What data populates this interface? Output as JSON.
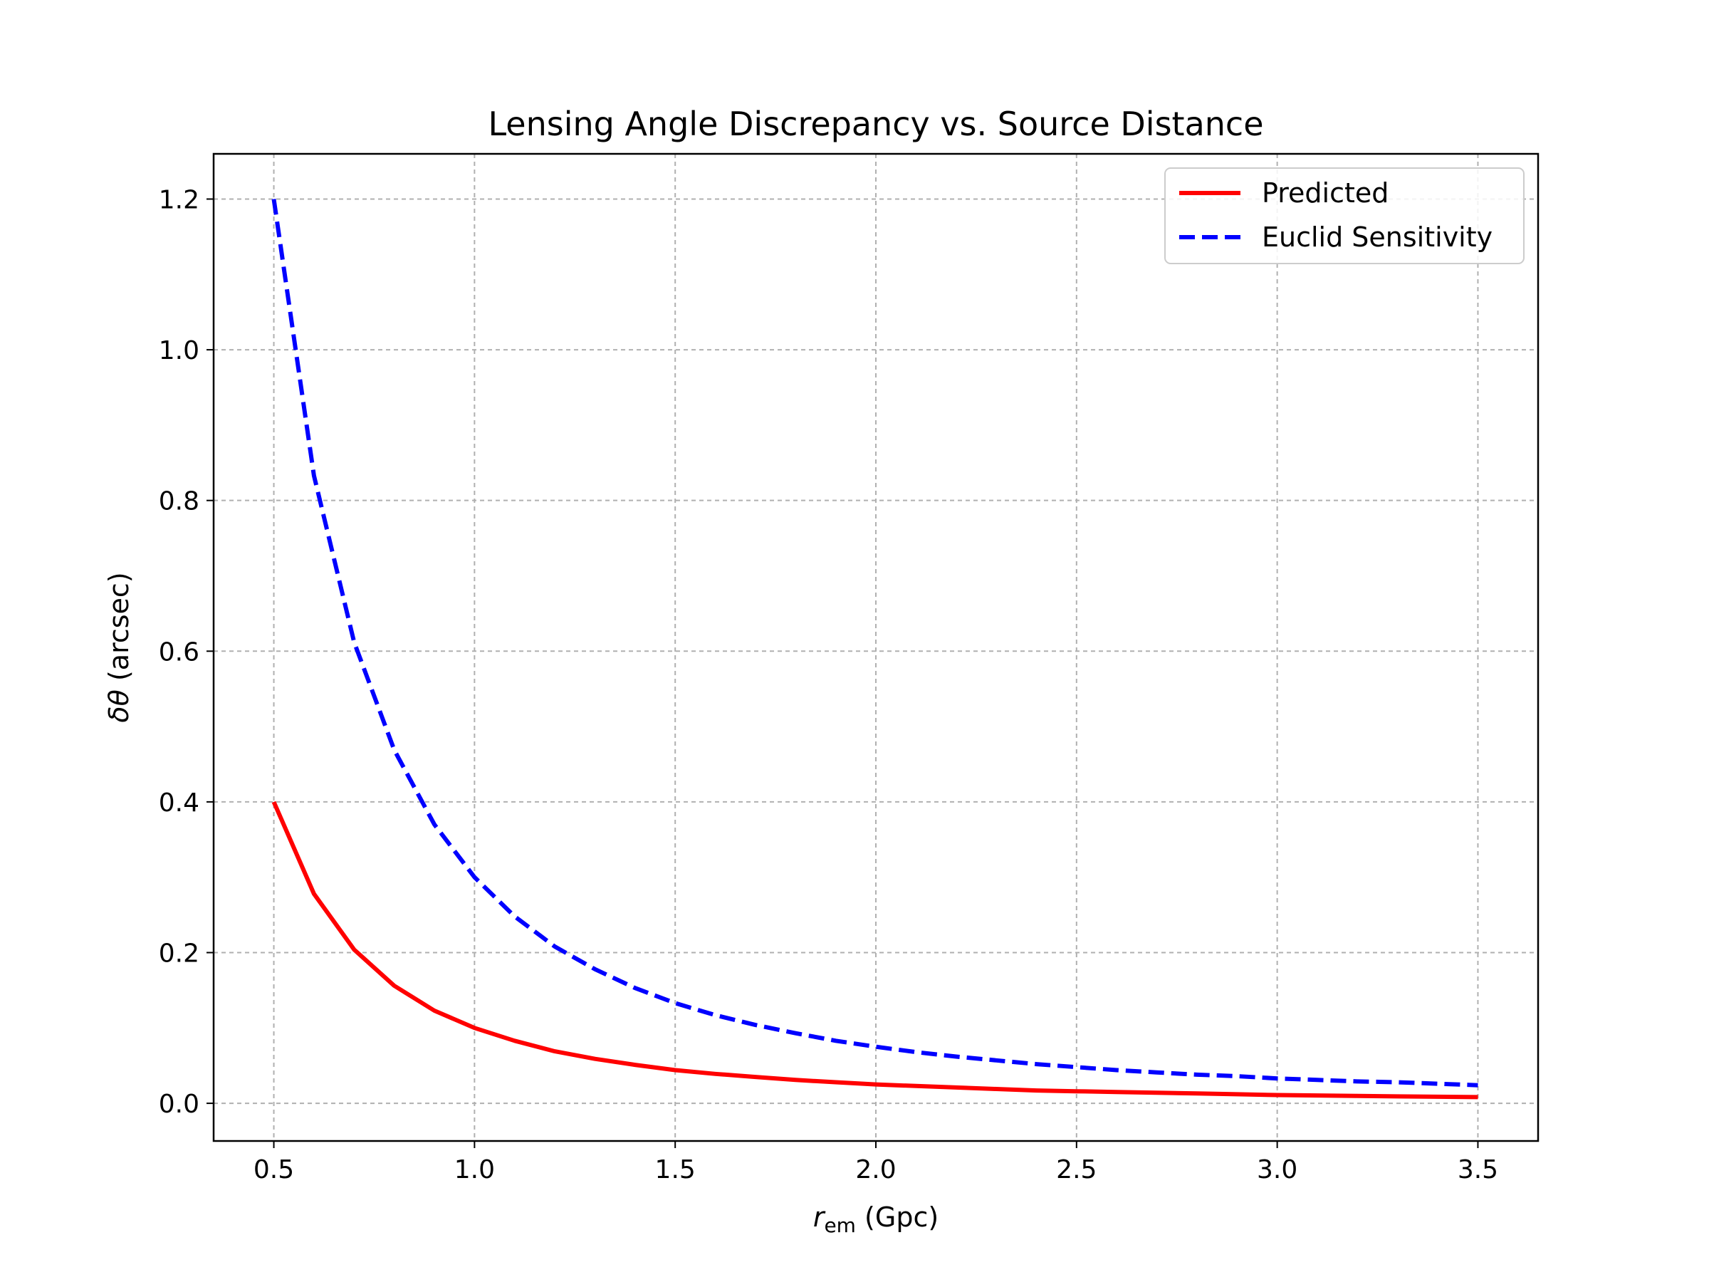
{
  "chart_data": {
    "type": "line",
    "title": "Lensing Angle Discrepancy vs. Source Distance",
    "xlabel": {
      "symbol": "r",
      "subscript": "em",
      "rest": " (Gpc)"
    },
    "ylabel": {
      "symbol": "δθ",
      "rest": " (arcsec)"
    },
    "xlim": [
      0.35,
      3.65
    ],
    "ylim": [
      -0.05,
      1.26
    ],
    "xticks": [
      0.5,
      1.0,
      1.5,
      2.0,
      2.5,
      3.0,
      3.5
    ],
    "xtick_labels": [
      "0.5",
      "1.0",
      "1.5",
      "2.0",
      "2.5",
      "3.0",
      "3.5"
    ],
    "yticks": [
      0.0,
      0.2,
      0.4,
      0.6,
      0.8,
      1.0,
      1.2
    ],
    "ytick_labels": [
      "0.0",
      "0.2",
      "0.4",
      "0.6",
      "0.8",
      "1.0",
      "1.2"
    ],
    "grid": true,
    "legend_position": "top-right",
    "x": [
      0.5,
      0.6,
      0.7,
      0.8,
      0.9,
      1.0,
      1.1,
      1.2,
      1.3,
      1.4,
      1.5,
      1.6,
      1.7,
      1.8,
      1.9,
      2.0,
      2.1,
      2.2,
      2.3,
      2.4,
      2.5,
      2.6,
      2.7,
      2.8,
      2.9,
      3.0,
      3.1,
      3.2,
      3.3,
      3.4,
      3.5
    ],
    "series": [
      {
        "name": "Predicted",
        "color": "#ff0000",
        "style": "solid",
        "values": [
          0.4,
          0.278,
          0.204,
          0.156,
          0.123,
          0.1,
          0.083,
          0.069,
          0.059,
          0.051,
          0.044,
          0.039,
          0.035,
          0.031,
          0.028,
          0.025,
          0.023,
          0.021,
          0.019,
          0.017,
          0.016,
          0.015,
          0.014,
          0.013,
          0.012,
          0.011,
          0.0104,
          0.0098,
          0.0092,
          0.0087,
          0.0082
        ]
      },
      {
        "name": "Euclid Sensitivity",
        "color": "#0000ff",
        "style": "dashed",
        "values": [
          1.2,
          0.833,
          0.612,
          0.469,
          0.37,
          0.3,
          0.248,
          0.208,
          0.178,
          0.153,
          0.133,
          0.117,
          0.104,
          0.093,
          0.083,
          0.075,
          0.068,
          0.062,
          0.057,
          0.052,
          0.048,
          0.044,
          0.041,
          0.038,
          0.036,
          0.033,
          0.031,
          0.029,
          0.028,
          0.026,
          0.024
        ]
      }
    ]
  }
}
